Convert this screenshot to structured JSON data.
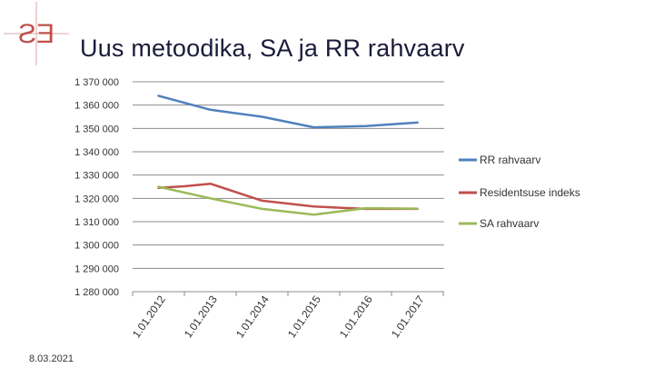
{
  "slide": {
    "title": "Uus metoodika, SA ja RR rahvaarv",
    "date": "8.03.2021",
    "logo": {
      "text": "ES",
      "color": "#c0504d"
    }
  },
  "chart_data": {
    "type": "line",
    "title": "",
    "xlabel": "",
    "ylabel": "",
    "x": [
      "1.01.2012",
      "1.01.2013",
      "1.01.2014",
      "1.01.2015",
      "1.01.2016",
      "1.01.2017"
    ],
    "y_ticks": [
      "1 370 000",
      "1 360 000",
      "1 350 000",
      "1 340 000",
      "1 330 000",
      "1 320 000",
      "1 310 000",
      "1 300 000",
      "1 290 000",
      "1 280 000"
    ],
    "ylim": [
      1280000,
      1370000
    ],
    "grid": true,
    "legend_position": "right",
    "series": [
      {
        "name": "RR rahvaarv",
        "color": "#4f81bd",
        "points": [
          [
            "2012-01-01",
            1364000
          ],
          [
            "2013-01-01",
            1358000
          ],
          [
            "2014-01-01",
            1355000
          ],
          [
            "2015-01-01",
            1350500
          ],
          [
            "2016-01-01",
            1351000
          ],
          [
            "2017-01-01",
            1352500
          ]
        ]
      },
      {
        "name": "Residentsuse indeks",
        "color": "#c0504d",
        "points": [
          [
            "2012-01-01",
            1324500
          ],
          [
            "2012-07-01",
            1325200
          ],
          [
            "2013-01-01",
            1326300
          ],
          [
            "2014-01-01",
            1319000
          ],
          [
            "2015-01-01",
            1316500
          ],
          [
            "2016-01-01",
            1315500
          ],
          [
            "2017-01-01",
            1315500
          ]
        ]
      },
      {
        "name": "SA rahvaarv",
        "color": "#9bbb59",
        "points": [
          [
            "2012-01-01",
            1325000
          ],
          [
            "2013-01-01",
            1320000
          ],
          [
            "2014-01-01",
            1315500
          ],
          [
            "2015-01-01",
            1313000
          ],
          [
            "2016-01-01",
            1315800
          ],
          [
            "2017-01-01",
            1315600
          ]
        ]
      }
    ]
  }
}
